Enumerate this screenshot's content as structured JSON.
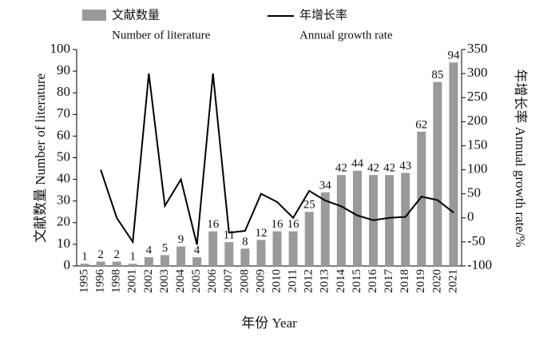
{
  "chart_data": {
    "type": "bar_line",
    "categories": [
      "1995",
      "1996",
      "1998",
      "2001",
      "2002",
      "2003",
      "2004",
      "2005",
      "2006",
      "2007",
      "2008",
      "2009",
      "2010",
      "2011",
      "2012",
      "2013",
      "2014",
      "2015",
      "2016",
      "2017",
      "2018",
      "2019",
      "2020",
      "2021"
    ],
    "series": [
      {
        "name": "文献数量",
        "name_en": "Number of literature",
        "color": "#9a9a9a",
        "type": "bar",
        "values": [
          1,
          2,
          2,
          1,
          4,
          5,
          9,
          4,
          16,
          11,
          8,
          12,
          16,
          16,
          25,
          34,
          42,
          44,
          42,
          42,
          43,
          62,
          85,
          94
        ]
      },
      {
        "name": "年增长率",
        "name_en": "Annual growth rate",
        "color": "#000000",
        "type": "line",
        "axis": "y2",
        "values": [
          null,
          100,
          0,
          -50,
          300,
          25,
          80,
          -56,
          300,
          -31,
          -27,
          50,
          33,
          0,
          56,
          36,
          24,
          5,
          -5,
          0,
          2,
          44,
          37,
          11
        ]
      }
    ],
    "xlabel": "年份 Year",
    "ylabel": "文献数量 Number of literature",
    "y2label": "年增长率 Annual growth rate/%",
    "ylim": [
      0,
      100
    ],
    "yticks": [
      0,
      10,
      20,
      30,
      40,
      50,
      60,
      70,
      80,
      90,
      100
    ],
    "y2lim": [
      -100,
      350
    ],
    "y2ticks": [
      -100,
      -50,
      0,
      50,
      100,
      150,
      200,
      250,
      300,
      350
    ]
  }
}
